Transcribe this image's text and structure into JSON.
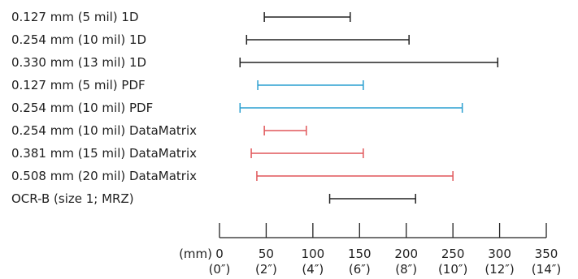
{
  "chart_data": {
    "type": "range",
    "title": "",
    "xlabel": "",
    "ylabel": "",
    "x_unit_labels": [
      "(mm)"
    ],
    "xlim": [
      0,
      350
    ],
    "x_ticks": [
      0,
      50,
      100,
      150,
      200,
      250,
      300,
      350
    ],
    "x_tick_labels_mm": [
      "0",
      "50",
      "100",
      "150",
      "200",
      "250",
      "300",
      "350"
    ],
    "x_tick_labels_in": [
      "(0″)",
      "(2″)",
      "(4″)",
      "(6″)",
      "(8″)",
      "(10″)",
      "(12″)",
      "(14″)"
    ],
    "grid": false,
    "legend": "none",
    "colors": {
      "1D": "#222222",
      "PDF": "#2a9fd0",
      "DataMatrix": "#e0575a",
      "OCR": "#222222"
    },
    "series": [
      {
        "label": "0.127 mm (5 mil) 1D",
        "range": [
          48,
          140
        ],
        "color": "#222222"
      },
      {
        "label": "0.254 mm (10 mil) 1D",
        "range": [
          29,
          203
        ],
        "color": "#222222"
      },
      {
        "label": "0.330 mm (13 mil) 1D",
        "range": [
          22,
          298
        ],
        "color": "#222222"
      },
      {
        "label": "0.127 mm (5 mil) PDF",
        "range": [
          41,
          154
        ],
        "color": "#2a9fd0"
      },
      {
        "label": "0.254 mm (10 mil) PDF",
        "range": [
          22,
          260
        ],
        "color": "#2a9fd0"
      },
      {
        "label": "0.254 mm (10 mil) DataMatrix",
        "range": [
          48,
          93
        ],
        "color": "#e0575a"
      },
      {
        "label": "0.381 mm (15 mil) DataMatrix",
        "range": [
          34,
          154
        ],
        "color": "#e0575a"
      },
      {
        "label": "0.508 mm (20 mil) DataMatrix",
        "range": [
          40,
          250
        ],
        "color": "#e0575a"
      },
      {
        "label": "OCR-B (size 1; MRZ)",
        "range": [
          118,
          210
        ],
        "color": "#222222"
      }
    ]
  }
}
